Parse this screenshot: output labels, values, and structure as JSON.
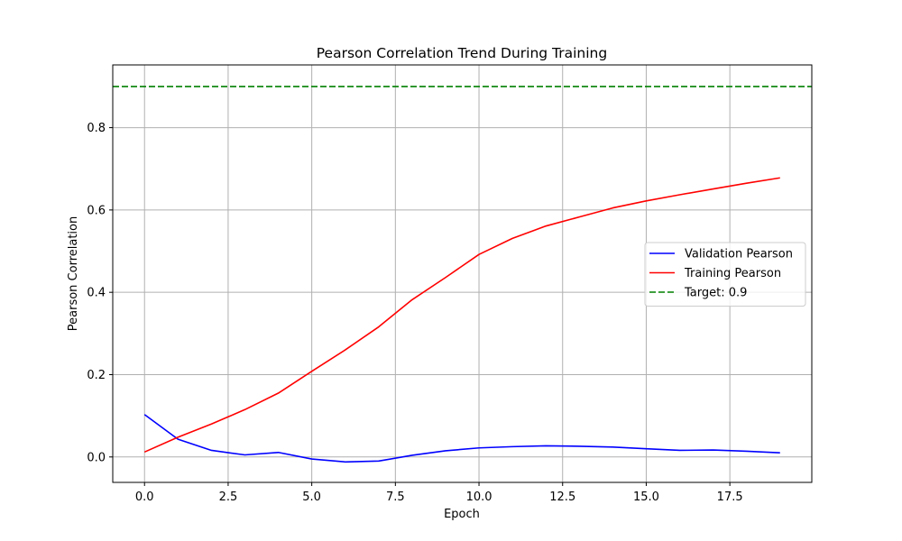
{
  "chart_data": {
    "type": "line",
    "title": "Pearson Correlation Trend During Training",
    "xlabel": "Epoch",
    "ylabel": "Pearson Correlation",
    "xlim": [
      -0.95,
      19.95
    ],
    "ylim": [
      -0.0618,
      0.9524
    ],
    "xticks": [
      0.0,
      2.5,
      5.0,
      7.5,
      10.0,
      12.5,
      15.0,
      17.5
    ],
    "xtick_labels": [
      "0.0",
      "2.5",
      "5.0",
      "7.5",
      "10.0",
      "12.5",
      "15.0",
      "17.5"
    ],
    "yticks": [
      0.0,
      0.2,
      0.4,
      0.6,
      0.8
    ],
    "ytick_labels": [
      "0.0",
      "0.2",
      "0.4",
      "0.6",
      "0.8"
    ],
    "grid": true,
    "legend_position": "center-right",
    "x": [
      0,
      1,
      2,
      3,
      4,
      5,
      6,
      7,
      8,
      9,
      10,
      11,
      12,
      13,
      14,
      15,
      16,
      17,
      18,
      19
    ],
    "series": [
      {
        "name": "Validation Pearson",
        "color": "#0000ff",
        "style": "solid",
        "values": [
          0.103,
          0.043,
          0.016,
          0.005,
          0.011,
          -0.005,
          -0.012,
          -0.01,
          0.004,
          0.015,
          0.022,
          0.025,
          0.027,
          0.026,
          0.024,
          0.02,
          0.016,
          0.017,
          0.014,
          0.01
        ]
      },
      {
        "name": "Training Pearson",
        "color": "#ff0000",
        "style": "solid",
        "values": [
          0.012,
          0.048,
          0.08,
          0.115,
          0.155,
          0.208,
          0.26,
          0.316,
          0.382,
          0.436,
          0.492,
          0.531,
          0.561,
          0.583,
          0.605,
          0.622,
          0.637,
          0.651,
          0.665,
          0.678
        ]
      }
    ],
    "reference_lines": [
      {
        "name": "Target: 0.9",
        "y": 0.9,
        "color": "#008000",
        "style": "dashed"
      }
    ]
  }
}
